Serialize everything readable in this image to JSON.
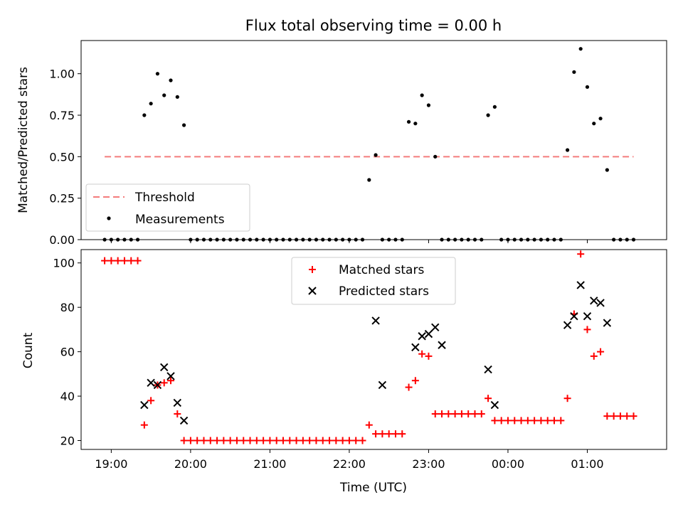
{
  "chart_data": {
    "type": "scatter",
    "title": "Flux total observing time = 0.00 h",
    "xlabel": "Time (UTC)",
    "x_tick_labels": [
      "19:00",
      "20:00",
      "21:00",
      "22:00",
      "23:00",
      "00:00",
      "01:00"
    ],
    "xlim_hours_from_19": [
      -0.38,
      7.0
    ],
    "colors": {
      "threshold": "#f47c7c",
      "measurements": "#000000",
      "matched": "#ff0000",
      "predicted": "#000000"
    },
    "panels": [
      {
        "ylabel": "Matched/Predicted stars",
        "ylim": [
          0,
          1.2
        ],
        "y_tick_labels": [
          "0.00",
          "0.25",
          "0.50",
          "0.75",
          "1.00"
        ],
        "threshold": {
          "name": "Threshold",
          "y": 0.5,
          "x_range": [
            "18:55",
            "01:35"
          ]
        },
        "legend": {
          "placement": "lower-left",
          "entries": [
            "Threshold",
            "Measurements"
          ]
        },
        "series": [
          {
            "name": "Measurements",
            "x": [
              "18:55",
              "19:00",
              "19:05",
              "19:10",
              "19:15",
              "19:20",
              "19:25",
              "19:30",
              "19:35",
              "19:40",
              "19:45",
              "19:50",
              "19:55",
              "20:00",
              "20:05",
              "20:10",
              "20:15",
              "20:20",
              "20:25",
              "20:30",
              "20:35",
              "20:40",
              "20:45",
              "20:50",
              "20:55",
              "21:00",
              "21:05",
              "21:10",
              "21:15",
              "21:20",
              "21:25",
              "21:30",
              "21:35",
              "21:40",
              "21:45",
              "21:50",
              "21:55",
              "22:00",
              "22:05",
              "22:10",
              "22:15",
              "22:20",
              "22:25",
              "22:30",
              "22:35",
              "22:40",
              "22:45",
              "22:50",
              "22:55",
              "23:00",
              "23:05",
              "23:10",
              "23:15",
              "23:20",
              "23:25",
              "23:30",
              "23:35",
              "23:40",
              "23:45",
              "23:50",
              "23:55",
              "00:00",
              "00:05",
              "00:10",
              "00:15",
              "00:20",
              "00:25",
              "00:30",
              "00:35",
              "00:40",
              "00:45",
              "00:50",
              "00:55",
              "01:00",
              "01:05",
              "01:10",
              "01:15",
              "01:20",
              "01:25",
              "01:30",
              "01:35"
            ],
            "y": [
              0,
              0,
              0,
              0,
              0,
              0,
              0.75,
              0.82,
              1.0,
              0.87,
              0.96,
              0.86,
              0.69,
              0,
              0,
              0,
              0,
              0,
              0,
              0,
              0,
              0,
              0,
              0,
              0,
              0,
              0,
              0,
              0,
              0,
              0,
              0,
              0,
              0,
              0,
              0,
              0,
              0,
              0,
              0,
              0.36,
              0.51,
              0,
              0,
              0,
              0,
              0.71,
              0.7,
              0.87,
              0.81,
              0.5,
              0,
              0,
              0,
              0,
              0,
              0,
              0,
              0.75,
              0.8,
              0,
              0,
              0,
              0,
              0,
              0,
              0,
              0,
              0,
              0,
              0.54,
              1.01,
              1.15,
              0.92,
              0.7,
              0.73,
              0.42,
              0,
              0,
              0,
              0
            ]
          }
        ]
      },
      {
        "ylabel": "Count",
        "ylim": [
          16,
          106
        ],
        "y_tick_labels": [
          "20",
          "40",
          "60",
          "80",
          "100"
        ],
        "legend": {
          "placement": "upper-center",
          "entries": [
            "Matched stars",
            "Predicted stars"
          ]
        },
        "series": [
          {
            "name": "Matched stars",
            "x": [
              "18:55",
              "19:00",
              "19:05",
              "19:10",
              "19:15",
              "19:20",
              "19:25",
              "19:30",
              "19:35",
              "19:40",
              "19:45",
              "19:50",
              "19:55",
              "20:00",
              "20:05",
              "20:10",
              "20:15",
              "20:20",
              "20:25",
              "20:30",
              "20:35",
              "20:40",
              "20:45",
              "20:50",
              "20:55",
              "21:00",
              "21:05",
              "21:10",
              "21:15",
              "21:20",
              "21:25",
              "21:30",
              "21:35",
              "21:40",
              "21:45",
              "21:50",
              "21:55",
              "22:00",
              "22:05",
              "22:10",
              "22:15",
              "22:20",
              "22:25",
              "22:30",
              "22:35",
              "22:40",
              "22:45",
              "22:50",
              "22:55",
              "23:00",
              "23:05",
              "23:10",
              "23:15",
              "23:20",
              "23:25",
              "23:30",
              "23:35",
              "23:40",
              "23:45",
              "23:50",
              "23:55",
              "00:00",
              "00:05",
              "00:10",
              "00:15",
              "00:20",
              "00:25",
              "00:30",
              "00:35",
              "00:40",
              "00:45",
              "00:50",
              "00:55",
              "01:00",
              "01:05",
              "01:10",
              "01:15",
              "01:20",
              "01:25",
              "01:30",
              "01:35"
            ],
            "y": [
              101,
              101,
              101,
              101,
              101,
              101,
              27,
              38,
              45,
              46,
              47,
              32,
              20,
              20,
              20,
              20,
              20,
              20,
              20,
              20,
              20,
              20,
              20,
              20,
              20,
              20,
              20,
              20,
              20,
              20,
              20,
              20,
              20,
              20,
              20,
              20,
              20,
              20,
              20,
              20,
              27,
              23,
              23,
              23,
              23,
              23,
              44,
              47,
              59,
              58,
              32,
              32,
              32,
              32,
              32,
              32,
              32,
              32,
              39,
              29,
              29,
              29,
              29,
              29,
              29,
              29,
              29,
              29,
              29,
              29,
              39,
              77,
              104,
              70,
              58,
              60,
              31,
              31,
              31,
              31,
              31
            ]
          },
          {
            "name": "Predicted stars",
            "x": [
              "19:25",
              "19:30",
              "19:35",
              "19:40",
              "19:45",
              "19:50",
              "19:55",
              "22:20",
              "22:25",
              "22:50",
              "22:55",
              "23:00",
              "23:05",
              "23:10",
              "23:45",
              "23:50",
              "00:45",
              "00:50",
              "00:55",
              "01:00",
              "01:05",
              "01:10",
              "01:15"
            ],
            "y": [
              36,
              46,
              45,
              53,
              49,
              37,
              29,
              74,
              45,
              62,
              67,
              68,
              71,
              63,
              52,
              36,
              72,
              76,
              90,
              76,
              83,
              82,
              73
            ]
          }
        ]
      }
    ]
  }
}
